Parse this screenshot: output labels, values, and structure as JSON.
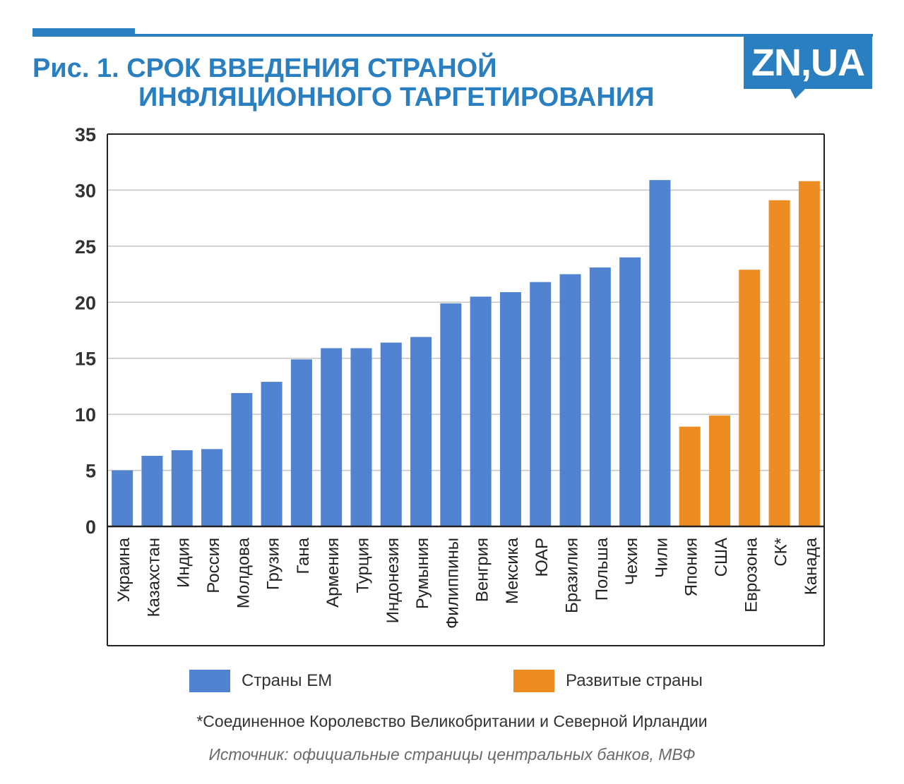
{
  "title": {
    "line1": "Рис. 1. СРОК ВВЕДЕНИЯ СТРАНОЙ",
    "line2": "ИНФЛЯЦИОННОГО ТАРГЕТИРОВАНИЯ"
  },
  "logo": {
    "text": "ZN,UA"
  },
  "colors": {
    "accent": "#2a7fc1",
    "em": "#5283d0",
    "developed": "#ec8c22"
  },
  "legend": [
    {
      "label": "Страны ЕМ",
      "color": "#5283d0"
    },
    {
      "label": "Развитые страны",
      "color": "#ec8c22"
    }
  ],
  "footnote": "*Соединенное Королевство Великобритании и Северной Ирландии",
  "source": "Источник: официальные страницы центральных банков, МВФ",
  "chart_data": {
    "type": "bar",
    "title": "Рис. 1. СРОК ВВЕДЕНИЯ СТРАНОЙ ИНФЛЯЦИОННОГО ТАРГЕТИРОВАНИЯ",
    "xlabel": "",
    "ylabel": "",
    "ylim": [
      0,
      35
    ],
    "yticks": [
      0,
      5,
      10,
      15,
      20,
      25,
      30,
      35
    ],
    "grid": true,
    "legend_position": "bottom",
    "categories": [
      "Украина",
      "Казахстан",
      "Индия",
      "Россия",
      "Молдова",
      "Грузия",
      "Гана",
      "Армения",
      "Турция",
      "Индонезия",
      "Румыния",
      "Филиппины",
      "Венгрия",
      "Мексика",
      "ЮАР",
      "Бразилия",
      "Польша",
      "Чехия",
      "Чили",
      "Япония",
      "США",
      "Еврозона",
      "СК*",
      "Канада"
    ],
    "values": [
      5,
      6.3,
      6.8,
      6.9,
      11.9,
      12.9,
      14.9,
      15.9,
      15.9,
      16.4,
      16.9,
      19.9,
      20.5,
      20.9,
      21.8,
      22.5,
      23.1,
      24,
      30.9,
      8.9,
      9.9,
      22.9,
      29.1,
      30.8
    ],
    "groups": [
      "em",
      "em",
      "em",
      "em",
      "em",
      "em",
      "em",
      "em",
      "em",
      "em",
      "em",
      "em",
      "em",
      "em",
      "em",
      "em",
      "em",
      "em",
      "em",
      "dev",
      "dev",
      "dev",
      "dev",
      "dev"
    ],
    "series": [
      {
        "name": "Страны ЕМ",
        "group": "em"
      },
      {
        "name": "Развитые страны",
        "group": "dev"
      }
    ]
  }
}
